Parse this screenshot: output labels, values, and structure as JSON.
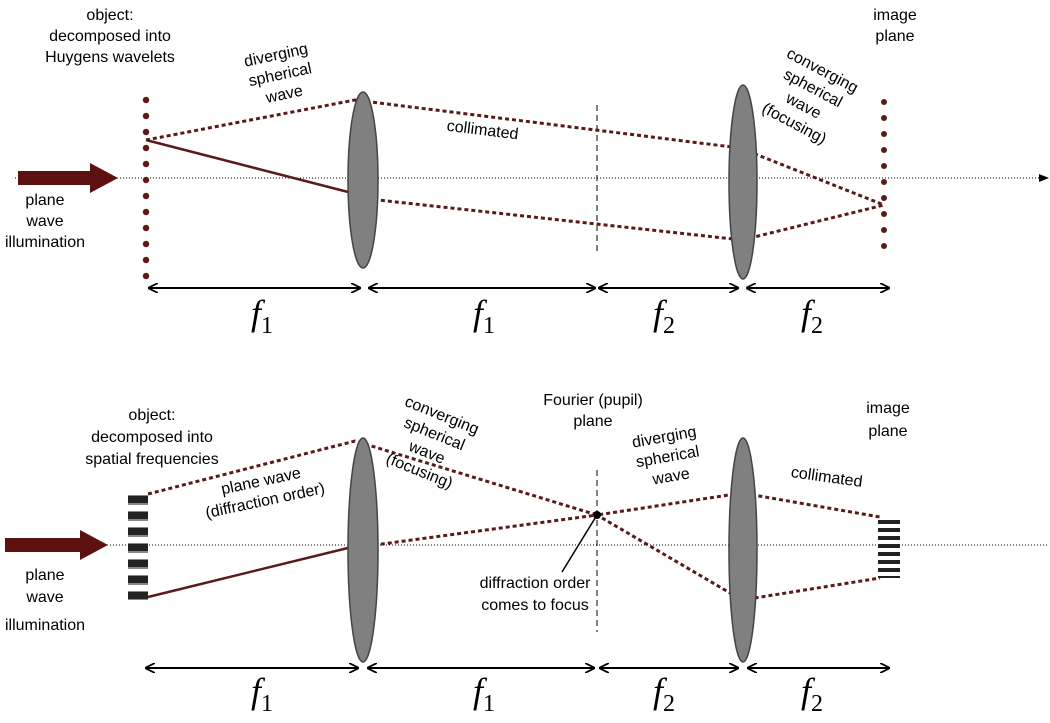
{
  "top": {
    "object": [
      "object:",
      "decomposed into",
      "Huygens wavelets"
    ],
    "illumination": [
      "plane",
      "wave",
      "illumination"
    ],
    "diverging": [
      "diverging",
      "spherical",
      "wave"
    ],
    "collimated": "collimated",
    "converging": [
      "converging",
      "spherical",
      "wave",
      "(focusing)"
    ],
    "image_plane": [
      "image",
      "plane"
    ],
    "distances": [
      {
        "symbol": "f",
        "subscript": "1"
      },
      {
        "symbol": "f",
        "subscript": "1"
      },
      {
        "symbol": "f",
        "subscript": "2"
      },
      {
        "symbol": "f",
        "subscript": "2"
      }
    ]
  },
  "bottom": {
    "object": [
      "object:",
      "decomposed into",
      "spatial frequencies"
    ],
    "illumination": [
      "plane",
      "wave",
      "illumination"
    ],
    "plane_wave": [
      "plane wave",
      "(diffraction order)"
    ],
    "converging": [
      "converging",
      "spherical",
      "wave",
      "(focusing)"
    ],
    "fourier_plane": [
      "Fourier (pupil)",
      "plane"
    ],
    "diverging": [
      "diverging",
      "spherical",
      "wave"
    ],
    "collimated": "collimated",
    "image_plane": [
      "image",
      "plane"
    ],
    "focus_note": [
      "diffraction order",
      "comes to focus"
    ],
    "distances": [
      {
        "symbol": "f",
        "subscript": "1"
      },
      {
        "symbol": "f",
        "subscript": "1"
      },
      {
        "symbol": "f",
        "subscript": "2"
      },
      {
        "symbol": "f",
        "subscript": "2"
      }
    ]
  }
}
